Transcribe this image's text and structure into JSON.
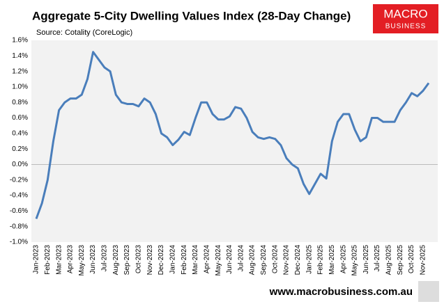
{
  "chart_data": {
    "type": "line",
    "title": "Aggregate 5-City Dwelling Values Index (28-Day Change)",
    "subtitle": "Source: Cotality (CoreLogic)",
    "logo": [
      "MACRO",
      "BUSINESS"
    ],
    "footer": "www.macrobusiness.com.au",
    "categories": [
      "Jan-2023",
      null,
      "Feb-2023",
      null,
      "Mar-2023",
      null,
      "Apr-2023",
      null,
      "May-2023",
      null,
      "Jun-2023",
      null,
      "Jul-2023",
      null,
      "Aug-2023",
      null,
      "Sep-2023",
      null,
      "Oct-2023",
      null,
      "Nov-2023",
      null,
      "Dec-2023",
      null,
      "Jan-2024",
      null,
      "Feb-2024",
      null,
      "Mar-2024",
      null,
      "Apr-2024",
      null,
      "May-2024",
      null,
      "Jun-2024",
      null,
      "Jul-2024",
      null,
      "Aug-2024",
      null,
      "Sep-2024",
      null,
      "Oct-2024",
      null,
      "Nov-2024",
      null,
      "Dec-2024",
      null,
      "Jan-2025",
      null,
      "Feb-2025",
      null,
      "Mar-2025",
      null,
      "Apr-2025",
      null,
      "May-2025",
      null,
      "Jun-2025",
      null,
      "Jul-2025",
      null,
      "Aug-2025",
      null,
      "Sep-2025",
      null,
      "Oct-2025",
      null,
      "Nov-2025",
      null
    ],
    "series": [
      {
        "name": "28-Day Change",
        "color": "#4a7ebb",
        "values": [
          -0.7,
          -0.5,
          -0.2,
          0.3,
          0.7,
          0.8,
          0.85,
          0.85,
          0.9,
          1.1,
          1.45,
          1.35,
          1.25,
          1.2,
          0.9,
          0.8,
          0.78,
          0.78,
          0.75,
          0.85,
          0.8,
          0.65,
          0.4,
          0.35,
          0.25,
          0.32,
          0.42,
          0.38,
          0.6,
          0.8,
          0.8,
          0.65,
          0.58,
          0.58,
          0.62,
          0.74,
          0.72,
          0.6,
          0.42,
          0.35,
          0.33,
          0.35,
          0.33,
          0.25,
          0.08,
          0.0,
          -0.05,
          -0.25,
          -0.38,
          -0.25,
          -0.12,
          -0.18,
          0.3,
          0.55,
          0.65,
          0.65,
          0.45,
          0.3,
          0.35,
          0.6,
          0.6,
          0.55,
          0.55,
          0.55,
          0.7,
          0.8,
          0.92,
          0.88,
          0.95,
          1.05
        ]
      }
    ],
    "ylim": [
      -1.0,
      1.6
    ],
    "yticks": [
      {
        "value": -1.0,
        "label": "-1.0%"
      },
      {
        "value": -0.8,
        "label": "-0.8%"
      },
      {
        "value": -0.6,
        "label": "-0.6%"
      },
      {
        "value": -0.4,
        "label": "-0.4%"
      },
      {
        "value": -0.2,
        "label": "-0.2%"
      },
      {
        "value": 0,
        "label": "0.0%"
      },
      {
        "value": 0.2,
        "label": "0.2%"
      },
      {
        "value": 0.4,
        "label": "0.4%"
      },
      {
        "value": 0.6,
        "label": "0.6%"
      },
      {
        "value": 0.8,
        "label": "0.8%"
      },
      {
        "value": 1.0,
        "label": "1.0%"
      },
      {
        "value": 1.2,
        "label": "1.2%"
      },
      {
        "value": 1.4,
        "label": "1.4%"
      },
      {
        "value": 1.6,
        "label": "1.6%"
      }
    ],
    "grid": false
  }
}
